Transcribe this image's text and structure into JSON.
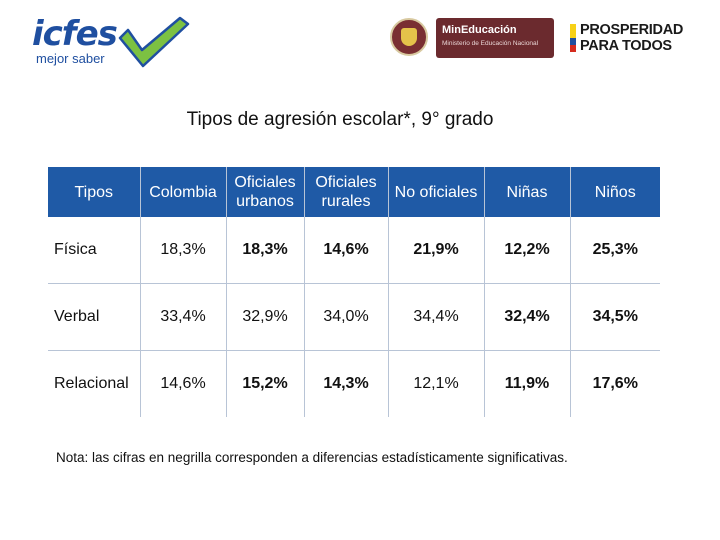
{
  "logos": {
    "icfes": {
      "word": "icfes",
      "tagline": "mejor saber",
      "accent": "#1f4fa0",
      "check": "#7cc142"
    },
    "mineducacion": {
      "title": "MinEducación",
      "subtitle": "Ministerio de Educación Nacional",
      "color": "#6b2a2e"
    },
    "prosperidad": {
      "line1": "PROSPERIDAD",
      "line2": "PARA TODOS",
      "flag": [
        "#f7d117",
        "#1f4fa0",
        "#d52b1e"
      ]
    }
  },
  "title": "Tipos de agresión escolar*, 9° grado",
  "table": {
    "header_color": "#1f5aa6",
    "columns": [
      {
        "label": "Tipos"
      },
      {
        "label": "Colombia"
      },
      {
        "label": "Oficiales urbanos"
      },
      {
        "label": "Oficiales rurales"
      },
      {
        "label": "No oficiales"
      },
      {
        "label": "Niñas"
      },
      {
        "label": "Niños"
      }
    ],
    "rows": [
      {
        "label": "Física",
        "cells": [
          {
            "value": "18,3%",
            "bold": false
          },
          {
            "value": "18,3%",
            "bold": true
          },
          {
            "value": "14,6%",
            "bold": true
          },
          {
            "value": "21,9%",
            "bold": true
          },
          {
            "value": "12,2%",
            "bold": true
          },
          {
            "value": "25,3%",
            "bold": true
          }
        ]
      },
      {
        "label": "Verbal",
        "cells": [
          {
            "value": "33,4%",
            "bold": false
          },
          {
            "value": "32,9%",
            "bold": false
          },
          {
            "value": "34,0%",
            "bold": false
          },
          {
            "value": "34,4%",
            "bold": false
          },
          {
            "value": "32,4%",
            "bold": true
          },
          {
            "value": "34,5%",
            "bold": true
          }
        ]
      },
      {
        "label": "Relacional",
        "cells": [
          {
            "value": "14,6%",
            "bold": false
          },
          {
            "value": "15,2%",
            "bold": true
          },
          {
            "value": "14,3%",
            "bold": true
          },
          {
            "value": "12,1%",
            "bold": false
          },
          {
            "value": "11,9%",
            "bold": true
          },
          {
            "value": "17,6%",
            "bold": true
          }
        ]
      }
    ]
  },
  "note": "Nota: las cifras en negrilla corresponden a diferencias estadísticamente significativas."
}
